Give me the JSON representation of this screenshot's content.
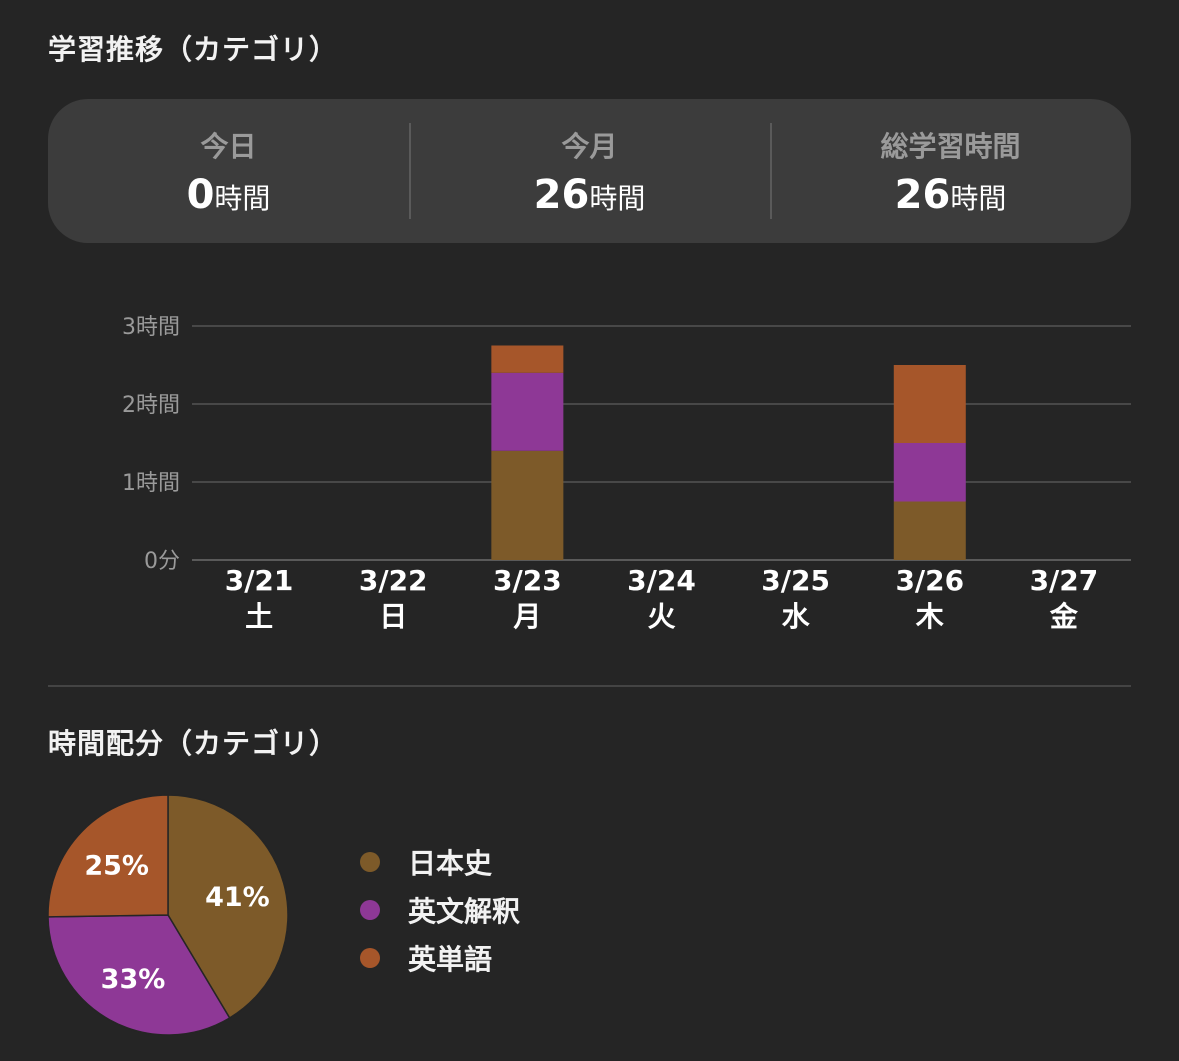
{
  "section1": {
    "title": "学習推移（カテゴリ）"
  },
  "summary": [
    {
      "label": "今日",
      "value": "0",
      "unit": "時間"
    },
    {
      "label": "今月",
      "value": "26",
      "unit": "時間"
    },
    {
      "label": "総学習時間",
      "value": "26",
      "unit": "時間"
    }
  ],
  "section2": {
    "title": "時間配分（カテゴリ）"
  },
  "colors": {
    "日本史": "#7d5a29",
    "英文解釈": "#8e3896",
    "英単語": "#a6562a"
  },
  "chart_data": [
    {
      "type": "bar",
      "stacked": true,
      "categories": [
        "3/21",
        "3/22",
        "3/23",
        "3/24",
        "3/25",
        "3/26",
        "3/27"
      ],
      "weekdays": [
        "土",
        "日",
        "月",
        "火",
        "水",
        "木",
        "金"
      ],
      "series": [
        {
          "name": "日本史",
          "values": [
            0,
            0,
            1.4,
            0,
            0,
            0.75,
            0
          ]
        },
        {
          "name": "英文解釈",
          "values": [
            0,
            0,
            1.0,
            0,
            0,
            0.75,
            0
          ]
        },
        {
          "name": "英単語",
          "values": [
            0,
            0,
            0.35,
            0,
            0,
            1.0,
            0
          ]
        }
      ],
      "ylim": [
        0,
        3
      ],
      "yticks": [
        0,
        1,
        2,
        3
      ],
      "ytick_labels": [
        "0分",
        "1時間",
        "2時間",
        "3時間"
      ],
      "grid": true
    },
    {
      "type": "pie",
      "slices": [
        {
          "name": "日本史",
          "value": 41,
          "label": "41%"
        },
        {
          "name": "英文解釈",
          "value": 33,
          "label": "33%"
        },
        {
          "name": "英単語",
          "value": 25,
          "label": "25%"
        }
      ],
      "legend": "right"
    }
  ]
}
